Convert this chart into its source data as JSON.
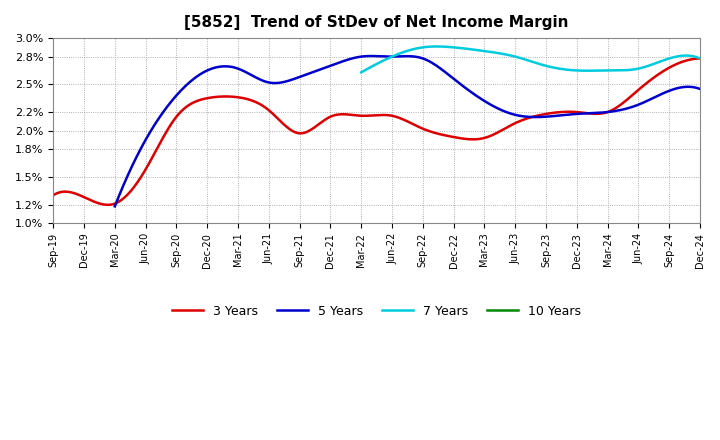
{
  "title": "[5852]  Trend of StDev of Net Income Margin",
  "background_color": "#ffffff",
  "plot_bg_color": "#ffffff",
  "grid_color": "#999999",
  "ylim": [
    0.01,
    0.03
  ],
  "yticks": [
    0.01,
    0.012,
    0.015,
    0.018,
    0.02,
    0.022,
    0.025,
    0.028,
    0.03
  ],
  "ytick_labels": [
    "1.0%",
    "1.2%",
    "1.5%",
    "1.8%",
    "2.0%",
    "2.2%",
    "2.5%",
    "2.8%",
    "3.0%"
  ],
  "series": {
    "3 Years": {
      "color": "#dd0000",
      "linewidth": 1.8,
      "dates_idx": [
        0,
        1,
        2,
        3,
        4,
        5,
        6,
        7,
        8,
        9,
        10,
        11,
        12,
        13,
        14,
        15,
        16,
        17,
        18,
        19,
        20,
        21
      ],
      "values": [
        0.013,
        0.0128,
        0.0121,
        0.0158,
        0.0215,
        0.0235,
        0.0236,
        0.0222,
        0.0197,
        0.0215,
        0.0216,
        0.0216,
        0.0202,
        0.0193,
        0.0192,
        0.0208,
        0.0218,
        0.022,
        0.022,
        0.0244,
        0.0268,
        0.0278
      ]
    },
    "5 Years": {
      "color": "#0000cc",
      "linewidth": 1.8,
      "dates_idx": [
        2,
        3,
        4,
        5,
        6,
        7,
        8,
        9,
        10,
        11,
        12,
        13,
        14,
        15,
        16,
        17,
        18,
        19,
        20,
        21
      ],
      "values": [
        0.0118,
        0.019,
        0.0238,
        0.0265,
        0.0267,
        0.0252,
        0.0258,
        0.027,
        0.028,
        0.028,
        0.0278,
        0.0256,
        0.0232,
        0.0217,
        0.0215,
        0.0218,
        0.022,
        0.0228,
        0.0243,
        0.0245
      ]
    },
    "7 Years": {
      "color": "#00ccdd",
      "linewidth": 1.8,
      "dates_idx": [
        10,
        11,
        12,
        13,
        14,
        15,
        16,
        17,
        18,
        19,
        20,
        21
      ],
      "values": [
        0.0263,
        0.028,
        0.029,
        0.029,
        0.0286,
        0.028,
        0.027,
        0.0265,
        0.0265,
        0.0267,
        0.0278,
        0.0278
      ]
    },
    "10 Years": {
      "color": "#008800",
      "linewidth": 1.8,
      "dates_idx": [],
      "values": []
    }
  },
  "xtick_labels": [
    "Sep-19",
    "Dec-19",
    "Mar-20",
    "Jun-20",
    "Sep-20",
    "Dec-20",
    "Mar-21",
    "Jun-21",
    "Sep-21",
    "Dec-21",
    "Mar-22",
    "Jun-22",
    "Sep-22",
    "Dec-22",
    "Mar-23",
    "Jun-23",
    "Sep-23",
    "Dec-23",
    "Mar-24",
    "Jun-24",
    "Sep-24",
    "Dec-24"
  ]
}
